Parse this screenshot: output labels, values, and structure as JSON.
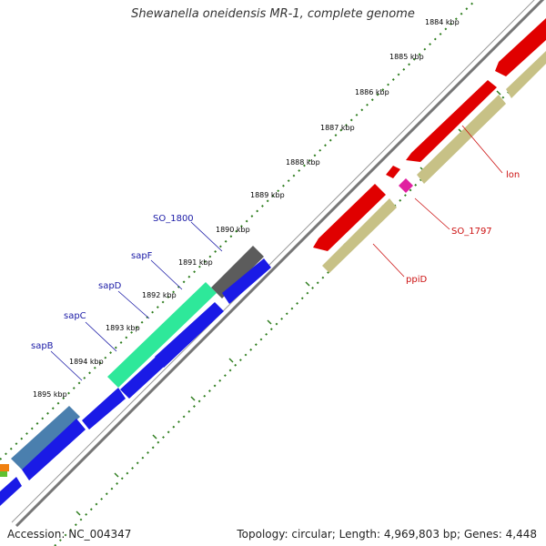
{
  "title": "Shewanella oneidensis MR-1, complete genome",
  "accession_text": "Accession: NC_004347",
  "topology_text": "Topology: circular; Length: 4,969,803 bp; Genes: 4,448",
  "ticks": [
    "1884 kbp",
    "1885 kbp",
    "1886 kbp",
    "1887 kbp",
    "1888 kbp",
    "1889 kbp",
    "1890 kbp",
    "1891 kbp",
    "1892 kbp",
    "1893 kbp",
    "1894 kbp",
    "1895 kbp"
  ],
  "genes_labeled": [
    {
      "name": "SO_1800",
      "color": "blue"
    },
    {
      "name": "sapF",
      "color": "blue"
    },
    {
      "name": "sapD",
      "color": "blue"
    },
    {
      "name": "sapC",
      "color": "blue"
    },
    {
      "name": "sapB",
      "color": "blue"
    },
    {
      "name": "lon",
      "color": "red"
    },
    {
      "name": "SO_1797",
      "color": "red"
    },
    {
      "name": "ppiD",
      "color": "red"
    }
  ],
  "colors": {
    "backbone": "#7a7a7a",
    "tick_dots": "#2e7d1e",
    "gene_red": "#e00000",
    "gene_olive": "#c7c186",
    "gene_blue": "#1a1ae6",
    "gene_green": "#2ee89a",
    "gene_gray": "#5c5c5c",
    "gene_steel": "#4a7fae",
    "gene_magenta": "#e020a0"
  }
}
